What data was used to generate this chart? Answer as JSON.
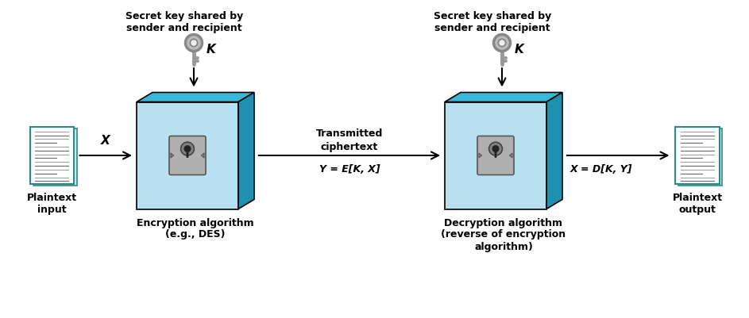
{
  "bg_color": "#ffffff",
  "box_face_color": "#b8e0f0",
  "box_top_color": "#3ab8d8",
  "box_side_color": "#2090b0",
  "doc_bg_color": "#ffffff",
  "doc_border_color": "#2a8a8a",
  "doc_fold_color": "#e0f0f0",
  "arrow_color": "#000000",
  "text_color": "#000000",
  "label_plaintext_input": "Plaintext\ninput",
  "label_plaintext_output": "Plaintext\noutput",
  "label_encrypt": "Encryption algorithm\n(e.g., DES)",
  "label_decrypt": "Decryption algorithm\n(reverse of encryption\nalgorithm)",
  "label_key1": "Secret key shared by\nsender and recipient",
  "label_key2": "Secret key shared by\nsender and recipient",
  "label_K1": "K",
  "label_K2": "K",
  "label_X_left": "X",
  "label_transmitted_top": "Transmitted",
  "label_transmitted_bot": "ciphertext",
  "label_Y": "Y = E[K, X]",
  "label_X_right": "X = D[K, Y]"
}
